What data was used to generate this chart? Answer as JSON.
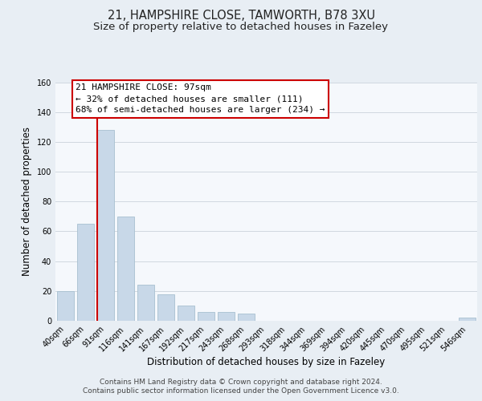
{
  "title_line1": "21, HAMPSHIRE CLOSE, TAMWORTH, B78 3XU",
  "title_line2": "Size of property relative to detached houses in Fazeley",
  "xlabel": "Distribution of detached houses by size in Fazeley",
  "ylabel": "Number of detached properties",
  "bar_labels": [
    "40sqm",
    "66sqm",
    "91sqm",
    "116sqm",
    "141sqm",
    "167sqm",
    "192sqm",
    "217sqm",
    "243sqm",
    "268sqm",
    "293sqm",
    "318sqm",
    "344sqm",
    "369sqm",
    "394sqm",
    "420sqm",
    "445sqm",
    "470sqm",
    "495sqm",
    "521sqm",
    "546sqm"
  ],
  "bar_values": [
    20,
    65,
    128,
    70,
    24,
    18,
    10,
    6,
    6,
    5,
    0,
    0,
    0,
    0,
    0,
    0,
    0,
    0,
    0,
    0,
    2
  ],
  "bar_color": "#c8d8e8",
  "bar_edge_color": "#a8c0d0",
  "vline_color": "#cc0000",
  "vline_index": 2,
  "ylim": [
    0,
    160
  ],
  "yticks": [
    0,
    20,
    40,
    60,
    80,
    100,
    120,
    140,
    160
  ],
  "annotation_text": "21 HAMPSHIRE CLOSE: 97sqm\n← 32% of detached houses are smaller (111)\n68% of semi-detached houses are larger (234) →",
  "footer_line1": "Contains HM Land Registry data © Crown copyright and database right 2024.",
  "footer_line2": "Contains public sector information licensed under the Open Government Licence v3.0.",
  "background_color": "#e8eef4",
  "plot_background_color": "#f5f8fc",
  "grid_color": "#d0d8e0",
  "title_fontsize": 10.5,
  "subtitle_fontsize": 9.5,
  "axis_label_fontsize": 8.5,
  "tick_fontsize": 7,
  "annotation_fontsize": 8,
  "footer_fontsize": 6.5
}
